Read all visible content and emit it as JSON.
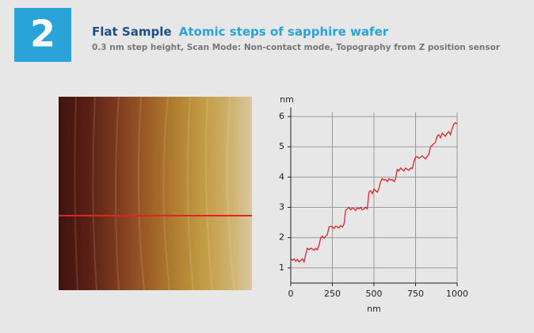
{
  "header": {
    "badge": "2",
    "title_bold": "Flat Sample",
    "title_accent": "Atomic steps of sapphire wafer",
    "subtitle": "0.3 nm step height,  Scan Mode: Non-contact mode, Topography from Z position sensor"
  },
  "chart_data": {
    "type": "line",
    "y_label": "nm",
    "x_label": "nm",
    "color": "#d7262b",
    "grid": true,
    "xlim": [
      0,
      1000
    ],
    "ylim": [
      0.5,
      6.3
    ],
    "xticks": [
      0,
      250,
      500,
      750,
      1000
    ],
    "yticks": [
      1,
      2,
      3,
      4,
      5,
      6
    ],
    "x": [
      0,
      10,
      20,
      30,
      40,
      50,
      60,
      70,
      80,
      90,
      100,
      110,
      120,
      130,
      140,
      150,
      160,
      170,
      180,
      190,
      200,
      210,
      220,
      230,
      240,
      250,
      260,
      270,
      280,
      290,
      300,
      310,
      320,
      330,
      340,
      350,
      360,
      370,
      380,
      390,
      400,
      410,
      420,
      430,
      440,
      450,
      460,
      470,
      480,
      490,
      500,
      510,
      520,
      530,
      540,
      550,
      560,
      570,
      580,
      590,
      600,
      610,
      620,
      630,
      640,
      650,
      660,
      670,
      680,
      690,
      700,
      710,
      720,
      730,
      740,
      750,
      760,
      770,
      780,
      790,
      800,
      810,
      820,
      830,
      840,
      850,
      860,
      870,
      880,
      890,
      900,
      910,
      920,
      930,
      940,
      950,
      960,
      970,
      980,
      990,
      1000
    ],
    "values": [
      1.3,
      1.25,
      1.3,
      1.22,
      1.28,
      1.2,
      1.25,
      1.3,
      1.2,
      1.45,
      1.65,
      1.6,
      1.65,
      1.62,
      1.58,
      1.65,
      1.6,
      1.75,
      2.0,
      2.05,
      1.98,
      2.05,
      2.1,
      2.35,
      2.38,
      2.35,
      2.3,
      2.38,
      2.35,
      2.32,
      2.4,
      2.35,
      2.45,
      2.9,
      2.95,
      3.0,
      2.92,
      2.98,
      2.95,
      2.9,
      2.98,
      2.95,
      3.0,
      2.92,
      2.95,
      3.0,
      2.95,
      3.5,
      3.55,
      3.45,
      3.6,
      3.55,
      3.5,
      3.62,
      3.85,
      3.95,
      3.9,
      3.92,
      3.85,
      3.95,
      3.9,
      3.92,
      3.85,
      3.95,
      4.25,
      4.2,
      4.3,
      4.25,
      4.2,
      4.3,
      4.25,
      4.22,
      4.3,
      4.28,
      4.5,
      4.65,
      4.68,
      4.62,
      4.65,
      4.7,
      4.65,
      4.6,
      4.68,
      4.75,
      5.0,
      5.05,
      5.1,
      5.15,
      5.35,
      5.4,
      5.3,
      5.45,
      5.4,
      5.35,
      5.45,
      5.5,
      5.4,
      5.6,
      5.75,
      5.8,
      5.75
    ]
  }
}
